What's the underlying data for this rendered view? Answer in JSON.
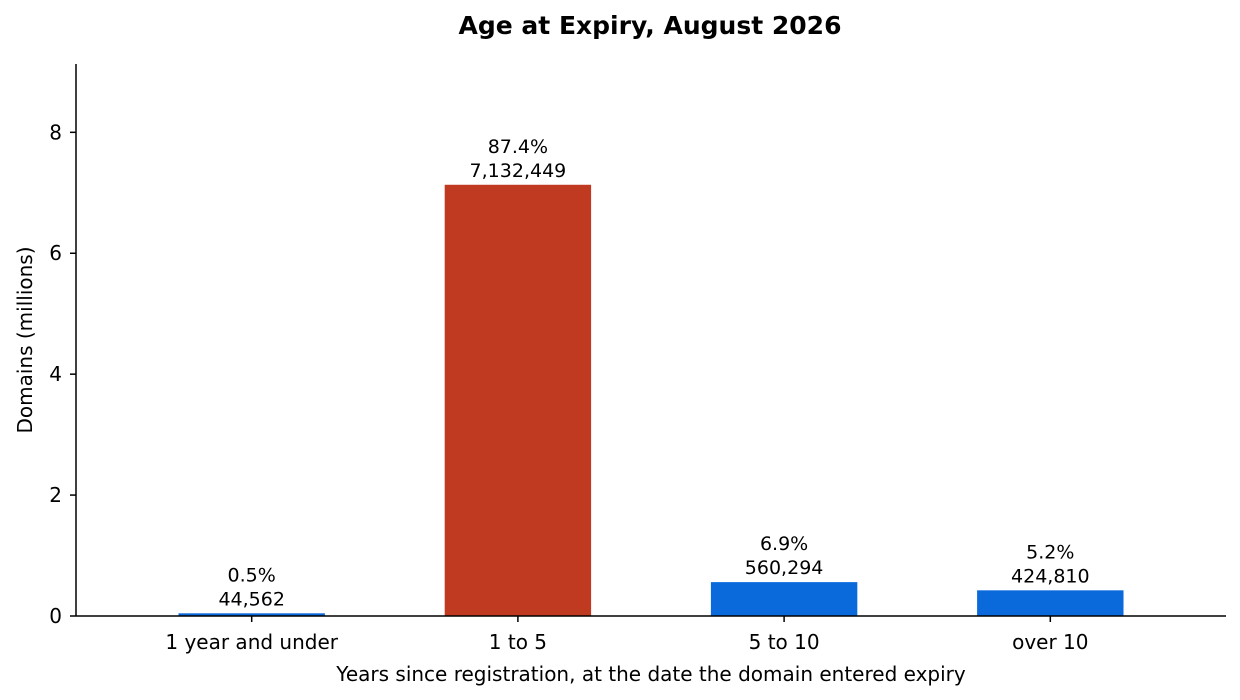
{
  "chart_data": {
    "type": "bar",
    "title": "Age at Expiry, August 2026",
    "xlabel": "Years since registration, at the date the domain entered expiry",
    "ylabel": "Domains (millions)",
    "ylim": [
      0,
      9.13
    ],
    "yticks": [
      0,
      2,
      4,
      6,
      8
    ],
    "grid": false,
    "categories": [
      "1 year and under",
      "1 to 5",
      "5 to 10",
      "over 10"
    ],
    "values": [
      44562,
      7132449,
      560294,
      424810
    ],
    "percent_labels": [
      "0.5%",
      "87.4%",
      "6.9%",
      "5.2%"
    ],
    "count_labels": [
      "44,562",
      "7,132,449",
      "560,294",
      "424,810"
    ],
    "bar_colors": [
      "#0a6adc",
      "#c03a22",
      "#0a6adc",
      "#0a6adc"
    ],
    "value_unit_divisor": 1000000
  }
}
